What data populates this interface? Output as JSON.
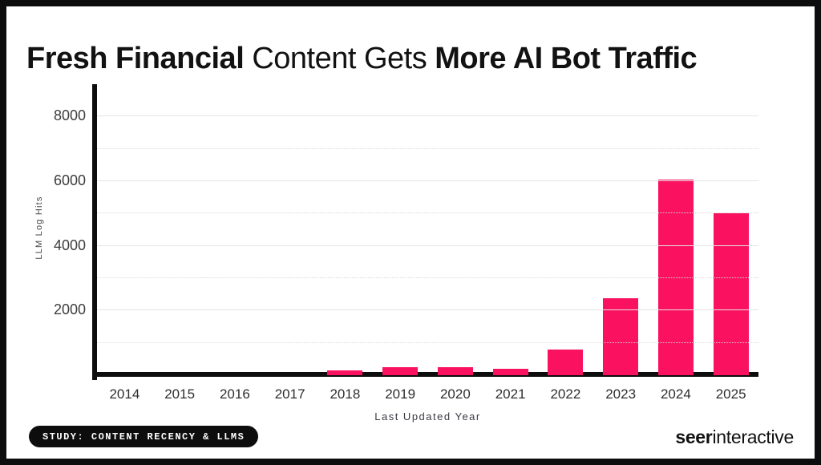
{
  "title": {
    "segments": [
      {
        "text": "Fresh Financial "
      },
      {
        "text": "Content Gets "
      },
      {
        "text": "More AI Bot Traffic"
      }
    ]
  },
  "chart_data": {
    "type": "bar",
    "categories": [
      "2014",
      "2015",
      "2016",
      "2017",
      "2018",
      "2019",
      "2020",
      "2021",
      "2022",
      "2023",
      "2024",
      "2025"
    ],
    "values": [
      0,
      0,
      0,
      0,
      150,
      260,
      250,
      190,
      800,
      2370,
      6060,
      5000
    ],
    "title": "Fresh Financial Content Gets More AI Bot Traffic",
    "xlabel": "Last Updated Year",
    "ylabel": "LLM Log Hits",
    "ylim": [
      0,
      9000
    ],
    "yticks": [
      2000,
      4000,
      6000,
      8000
    ],
    "minor_yticks": [
      1000,
      3000,
      5000,
      7000
    ],
    "bar_color": "#FA115F",
    "grid": "horizontal-major-solid-minor-dotted",
    "legend": "none"
  },
  "badge": {
    "label": "STUDY: CONTENT RECENCY & LLMS"
  },
  "logo": {
    "bold": "seer",
    "regular": "interactive"
  }
}
